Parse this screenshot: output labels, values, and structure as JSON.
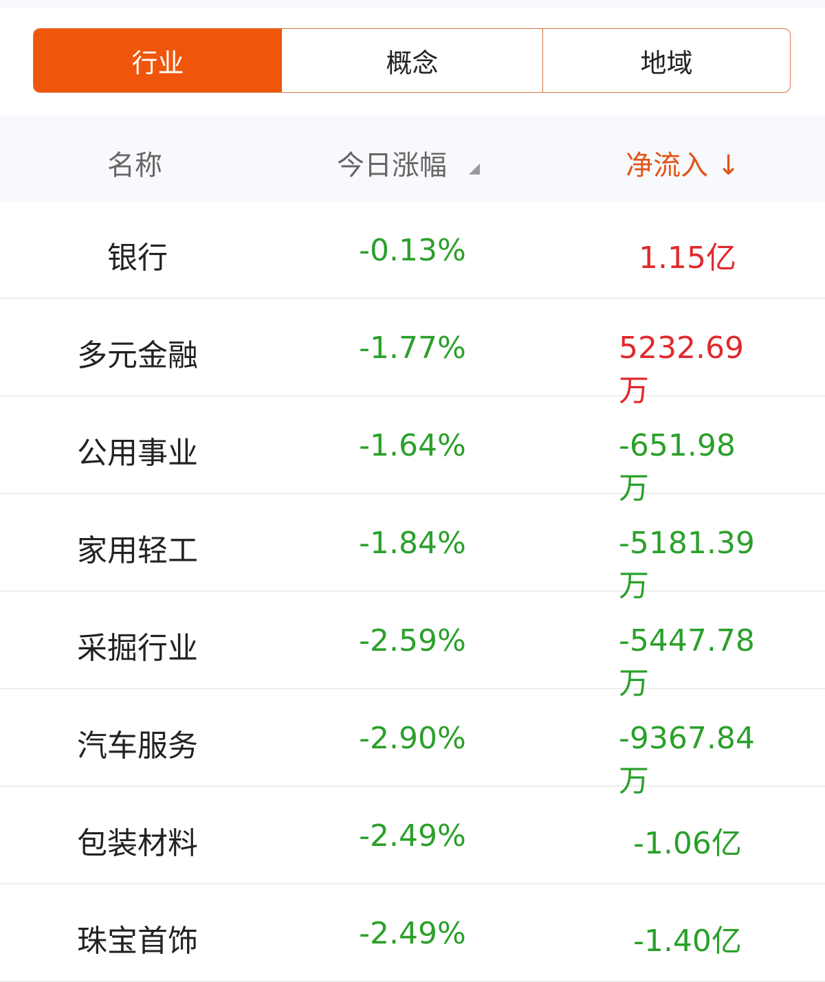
{
  "tabs": [
    {
      "label": "行业",
      "active": true
    },
    {
      "label": "概念"
    },
    {
      "label": "地域"
    }
  ],
  "colors": {
    "accent": "#ef560c",
    "up": "#e0282c",
    "down": "#2aa02a"
  },
  "header": {
    "name": "名称",
    "change": "今日涨幅",
    "change_sort_icon": "sort-triangle-icon",
    "net_inflow": "净流入",
    "net_inflow_sort_icon": "arrow-down-icon",
    "arrow": "↓"
  },
  "rows": [
    {
      "name": "银行",
      "change": "-0.13%",
      "net_inflow": "1.15亿",
      "dir": "pos"
    },
    {
      "name": "多元金融",
      "change": "-1.77%",
      "net_inflow": "5232.69万",
      "dir": "pos"
    },
    {
      "name": "公用事业",
      "change": "-1.64%",
      "net_inflow": "-651.98万",
      "dir": "neg"
    },
    {
      "name": "家用轻工",
      "change": "-1.84%",
      "net_inflow": "-5181.39万",
      "dir": "neg"
    },
    {
      "name": "采掘行业",
      "change": "-2.59%",
      "net_inflow": "-5447.78万",
      "dir": "neg"
    },
    {
      "name": "汽车服务",
      "change": "-2.90%",
      "net_inflow": "-9367.84万",
      "dir": "neg"
    },
    {
      "name": "包装材料",
      "change": "-2.49%",
      "net_inflow": "-1.06亿",
      "dir": "neg"
    },
    {
      "name": "珠宝首饰",
      "change": "-2.49%",
      "net_inflow": "-1.40亿",
      "dir": "neg"
    }
  ]
}
